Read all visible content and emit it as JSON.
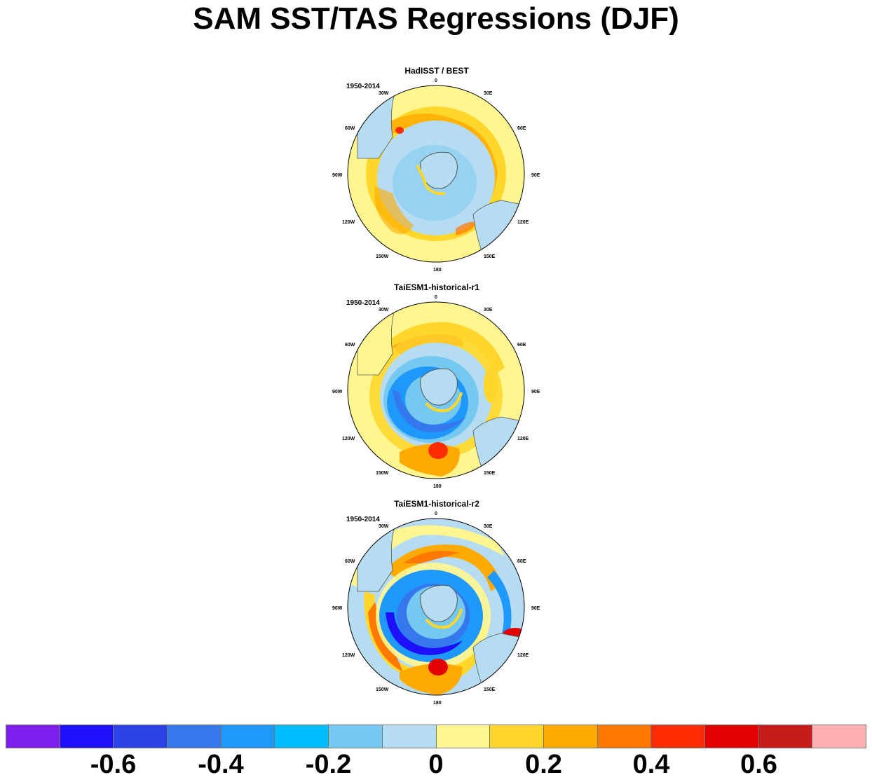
{
  "title": "SAM SST/TAS Regressions (DJF)",
  "panels": [
    {
      "title": "HadISST / BEST",
      "period": "1950-2014"
    },
    {
      "title": "TaiESM1-historical-r1",
      "period": "1950-2014"
    },
    {
      "title": "TaiESM1-historical-r2",
      "period": "1950-2014"
    }
  ],
  "longitude_labels": [
    "0",
    "30E",
    "60E",
    "90E",
    "120E",
    "150E",
    "180",
    "150W",
    "120W",
    "90W",
    "60W",
    "30W"
  ],
  "colorbar": {
    "colors": [
      "#8020f0",
      "#1e10f8",
      "#2c43e8",
      "#3478ec",
      "#1f98fb",
      "#00bfff",
      "#75c8f0",
      "#b6dcf2",
      "#fff690",
      "#ffd62a",
      "#ffaa00",
      "#ff7800",
      "#ff2b00",
      "#e20000",
      "#c81c1c",
      "#ffb0b0"
    ],
    "tick_labels": [
      "-0.6",
      "-0.4",
      "-0.2",
      "0",
      "0.2",
      "0.4",
      "0.6"
    ],
    "tick_values": [
      -0.6,
      -0.4,
      -0.2,
      0,
      0.2,
      0.4,
      0.6
    ],
    "range": [
      -0.8,
      0.8
    ]
  }
}
